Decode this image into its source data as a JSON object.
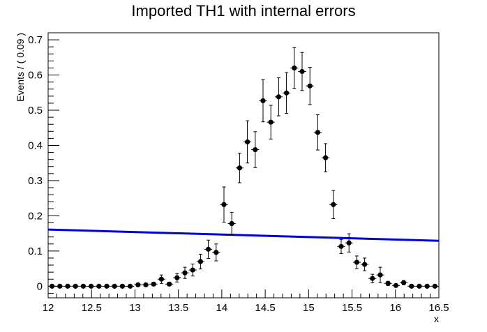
{
  "chart_data": {
    "type": "scatter",
    "title": "Imported TH1 with internal errors",
    "xlabel": "x",
    "ylabel": "Events / ( 0.09 )",
    "xlim": [
      12,
      16.5
    ],
    "ylim": [
      -0.033,
      0.72
    ],
    "grid": false,
    "legend": "none",
    "x_ticks": [
      "12",
      "12.5",
      "13",
      "13.5",
      "14",
      "14.5",
      "15",
      "15.5",
      "16",
      "16.5"
    ],
    "y_ticks": [
      "0",
      "0.1",
      "0.2",
      "0.3",
      "0.4",
      "0.5",
      "0.6",
      "0.7"
    ],
    "bin_width": 0.09,
    "series": [
      {
        "kind": "points-with-errors",
        "color": "#000000",
        "x": [
          12.045,
          12.135,
          12.225,
          12.315,
          12.405,
          12.495,
          12.585,
          12.675,
          12.765,
          12.855,
          12.945,
          13.035,
          13.125,
          13.215,
          13.305,
          13.395,
          13.485,
          13.575,
          13.665,
          13.755,
          13.845,
          13.935,
          14.025,
          14.115,
          14.205,
          14.295,
          14.385,
          14.475,
          14.565,
          14.655,
          14.745,
          14.835,
          14.925,
          15.015,
          15.105,
          15.195,
          15.285,
          15.375,
          15.465,
          15.555,
          15.645,
          15.735,
          15.825,
          15.915,
          16.005,
          16.095,
          16.185,
          16.275,
          16.365,
          16.455
        ],
        "y": [
          0,
          0,
          0,
          0,
          0,
          0,
          0,
          0,
          0,
          0,
          0,
          0.004,
          0.004,
          0.006,
          0.02,
          0.006,
          0.024,
          0.038,
          0.046,
          0.07,
          0.105,
          0.096,
          0.232,
          0.178,
          0.336,
          0.41,
          0.388,
          0.527,
          0.466,
          0.538,
          0.549,
          0.62,
          0.61,
          0.569,
          0.437,
          0.365,
          0.232,
          0.113,
          0.123,
          0.068,
          0.062,
          0.022,
          0.032,
          0.008,
          0.002,
          0.01,
          0,
          0,
          0,
          0
        ],
        "yerr": [
          0,
          0,
          0,
          0,
          0,
          0,
          0,
          0,
          0,
          0,
          0,
          0.004,
          0.004,
          0.005,
          0.012,
          0.005,
          0.012,
          0.016,
          0.017,
          0.021,
          0.026,
          0.024,
          0.05,
          0.032,
          0.042,
          0.06,
          0.051,
          0.06,
          0.048,
          0.054,
          0.058,
          0.058,
          0.054,
          0.053,
          0.05,
          0.04,
          0.04,
          0.02,
          0.026,
          0.018,
          0.018,
          0.012,
          0.022,
          0.006,
          0.004,
          0.006,
          0,
          0,
          0,
          0
        ]
      },
      {
        "kind": "line",
        "color": "#0000dd",
        "x": [
          12,
          16.5
        ],
        "y": [
          0.161,
          0.129
        ]
      }
    ]
  }
}
